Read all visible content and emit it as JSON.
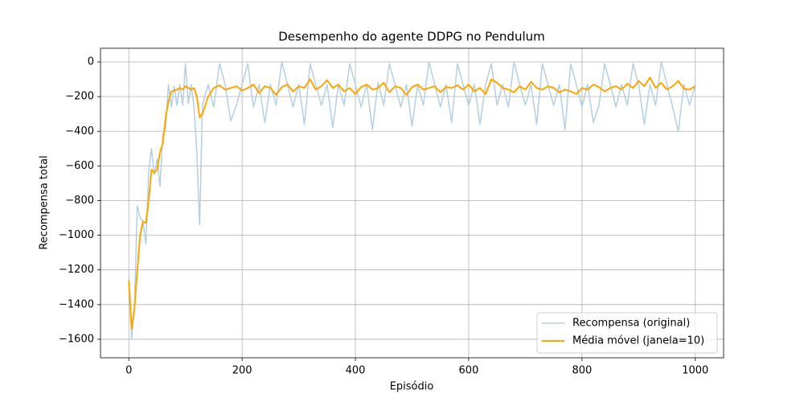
{
  "chart_data": {
    "type": "line",
    "title": "Desempenho do agente DDPG no Pendulum",
    "x_label": "Episódio",
    "y_label": "Recompensa total",
    "x": [
      0,
      5,
      10,
      15,
      20,
      25,
      30,
      35,
      40,
      45,
      50,
      55,
      60,
      65,
      70,
      75,
      80,
      85,
      90,
      95,
      100,
      105,
      110,
      115,
      120,
      125,
      130,
      140,
      150,
      160,
      170,
      180,
      190,
      200,
      210,
      220,
      230,
      240,
      250,
      260,
      270,
      280,
      290,
      300,
      310,
      320,
      330,
      340,
      350,
      360,
      370,
      380,
      390,
      400,
      410,
      420,
      430,
      440,
      450,
      460,
      470,
      480,
      490,
      500,
      510,
      520,
      530,
      540,
      550,
      560,
      570,
      580,
      590,
      600,
      610,
      620,
      630,
      640,
      650,
      660,
      670,
      680,
      690,
      700,
      710,
      720,
      730,
      740,
      750,
      760,
      770,
      780,
      790,
      800,
      810,
      820,
      830,
      840,
      850,
      860,
      870,
      880,
      890,
      900,
      910,
      920,
      930,
      940,
      950,
      960,
      970,
      980,
      990,
      1000
    ],
    "series": [
      {
        "name": "Recompensa (original)",
        "color": "#b3cfe3",
        "width": 1.5,
        "values": [
          -1250,
          -1600,
          -1400,
          -830,
          -900,
          -920,
          -1050,
          -630,
          -500,
          -650,
          -560,
          -720,
          -420,
          -380,
          -130,
          -260,
          -140,
          -250,
          -130,
          -250,
          -10,
          -240,
          -130,
          -260,
          -520,
          -940,
          -250,
          -130,
          -260,
          -10,
          -130,
          -340,
          -250,
          -130,
          -10,
          -260,
          -130,
          -350,
          -130,
          -250,
          0,
          -130,
          -260,
          -130,
          -360,
          -10,
          -130,
          -250,
          -130,
          -380,
          -130,
          -250,
          -10,
          -130,
          -260,
          -130,
          -390,
          -120,
          -250,
          -10,
          -130,
          -260,
          -130,
          -370,
          -130,
          -250,
          0,
          -130,
          -260,
          -130,
          -350,
          -10,
          -130,
          -250,
          -130,
          -360,
          -130,
          -10,
          -250,
          -130,
          -260,
          0,
          -130,
          -250,
          -130,
          -360,
          -10,
          -130,
          -250,
          -130,
          -390,
          -10,
          -130,
          -260,
          -130,
          -350,
          -250,
          -10,
          -130,
          -260,
          -130,
          -250,
          -10,
          -130,
          -360,
          -130,
          -250,
          0,
          -130,
          -260,
          -400,
          -130,
          -250,
          -130
        ]
      },
      {
        "name": "Média móvel (janela=10)",
        "color": "#ffa500",
        "width": 2,
        "values": [
          -1260,
          -1540,
          -1420,
          -1200,
          -1000,
          -920,
          -930,
          -800,
          -620,
          -640,
          -620,
          -520,
          -470,
          -320,
          -230,
          -170,
          -165,
          -160,
          -150,
          -160,
          -140,
          -150,
          -160,
          -150,
          -200,
          -320,
          -300,
          -200,
          -150,
          -135,
          -160,
          -150,
          -140,
          -165,
          -150,
          -130,
          -180,
          -140,
          -150,
          -190,
          -145,
          -130,
          -170,
          -140,
          -150,
          -100,
          -160,
          -140,
          -105,
          -150,
          -130,
          -170,
          -150,
          -185,
          -145,
          -130,
          -160,
          -150,
          -120,
          -175,
          -140,
          -150,
          -190,
          -145,
          -130,
          -160,
          -150,
          -140,
          -175,
          -145,
          -150,
          -135,
          -160,
          -130,
          -170,
          -150,
          -185,
          -100,
          -120,
          -150,
          -160,
          -175,
          -140,
          -160,
          -115,
          -150,
          -160,
          -140,
          -150,
          -175,
          -160,
          -170,
          -185,
          -150,
          -160,
          -130,
          -145,
          -170,
          -150,
          -140,
          -160,
          -125,
          -150,
          -110,
          -140,
          -90,
          -150,
          -120,
          -160,
          -140,
          -110,
          -155,
          -160,
          -140
        ]
      }
    ],
    "xlim": [
      -50,
      1050
    ],
    "ylim": [
      -1707,
      79
    ],
    "xticks": [
      0,
      200,
      400,
      600,
      800,
      1000
    ],
    "yticks": [
      {
        "value": -1600,
        "label": "−1600"
      },
      {
        "value": -1400,
        "label": "−1400"
      },
      {
        "value": -1200,
        "label": "−1200"
      },
      {
        "value": -1000,
        "label": "−1000"
      },
      {
        "value": -800,
        "label": "−800"
      },
      {
        "value": -600,
        "label": "−600"
      },
      {
        "value": -400,
        "label": "−400"
      },
      {
        "value": -200,
        "label": "−200"
      },
      0
    ],
    "grid": true,
    "legend": "lower right"
  }
}
